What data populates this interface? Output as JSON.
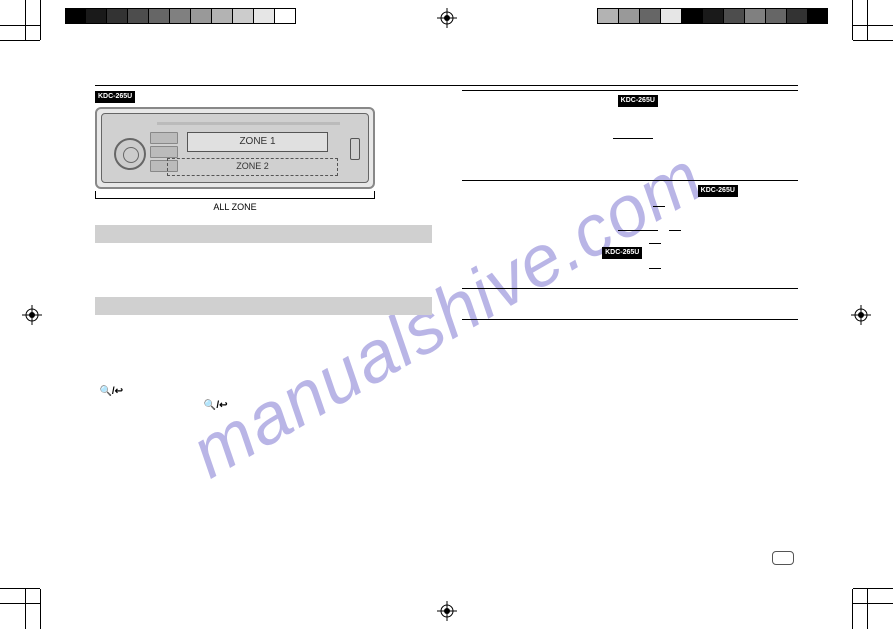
{
  "watermark": "manualshive.com",
  "badges": {
    "model": "KDC-265U"
  },
  "device": {
    "zone1": "ZONE 1",
    "zone2": "ZONE 2",
    "allzone": "ALL ZONE"
  },
  "icons": {
    "search_back": "🔍/↩"
  },
  "strip_widths": [
    21,
    21,
    21,
    21,
    21,
    21,
    21,
    21,
    21,
    21,
    21
  ],
  "strip_left_colors": [
    "#000000",
    "#1a1a1a",
    "#333333",
    "#4d4d4d",
    "#666666",
    "#808080",
    "#999999",
    "#b3b3b3",
    "#cccccc",
    "#e6e6e6",
    "#ffffff"
  ],
  "strip_right_colors": [
    "#000000",
    "#333333",
    "#666666",
    "#808080",
    "#4d4d4d",
    "#1a1a1a",
    "#000000",
    "#e6e6e6",
    "#666666",
    "#999999",
    "#b3b3b3"
  ]
}
